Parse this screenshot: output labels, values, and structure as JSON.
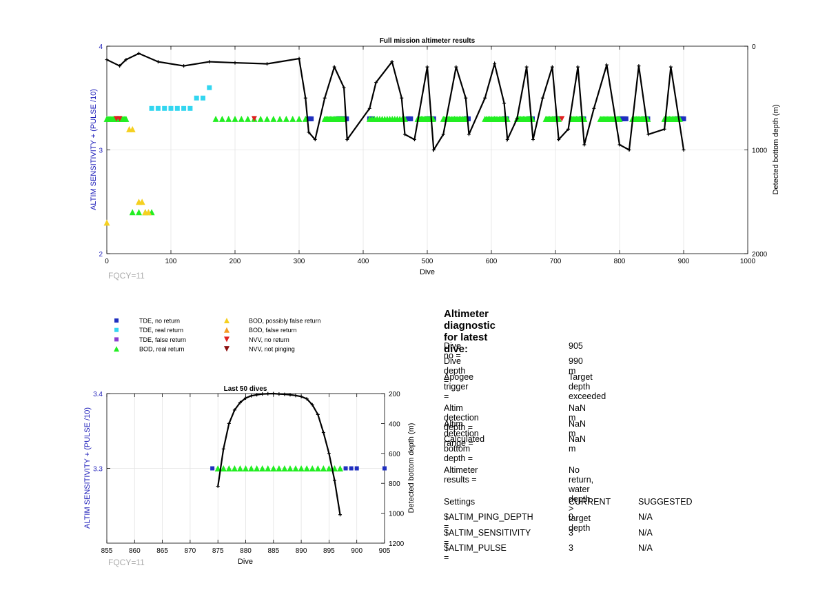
{
  "top_chart": {
    "title": "Full mission altimeter results",
    "xlabel": "Dive",
    "ylabel_left": "ALTIM SENSITIVITY + (PULSE /10)",
    "ylabel_right": "Detected bottom depth (m)",
    "footnote": "FQCY=11",
    "xlim": [
      0,
      1000
    ],
    "ylim_left": [
      2,
      4
    ],
    "ylim_right": [
      0,
      2000
    ],
    "x_ticks": [
      "0",
      "100",
      "200",
      "300",
      "400",
      "500",
      "600",
      "700",
      "800",
      "900",
      "1000"
    ],
    "y_ticks_left": [
      "2",
      "3",
      "4"
    ],
    "y_ticks_right": [
      "0",
      "1000",
      "2000"
    ]
  },
  "bottom_chart": {
    "title": "Last 50 dives",
    "xlabel": "Dive",
    "ylabel_left": "ALTIM SENSITIVITY + (PULSE /10)",
    "ylabel_right": "Detected bottom depth (m)",
    "footnote": "FQCY=11",
    "xlim": [
      855,
      905
    ],
    "ylim_left": [
      3.2,
      3.4
    ],
    "ylim_right": [
      200,
      1200
    ],
    "x_ticks": [
      "855",
      "860",
      "865",
      "870",
      "875",
      "880",
      "885",
      "890",
      "895",
      "900",
      "905"
    ],
    "y_ticks_left": [
      "3.3",
      "3.4"
    ],
    "y_ticks_right": [
      "200",
      "400",
      "600",
      "800",
      "1000",
      "1200"
    ]
  },
  "legend": [
    {
      "label": "TDE, no return",
      "color": "#1f2fbf",
      "shape": "square"
    },
    {
      "label": "TDE, real return",
      "color": "#33d6f0",
      "shape": "square"
    },
    {
      "label": "TDE, false return",
      "color": "#8a3fd0",
      "shape": "square"
    },
    {
      "label": "BOD, real return",
      "color": "#22ee22",
      "shape": "triangle-up"
    },
    {
      "label": "BOD, possibly false return",
      "color": "#f5d020",
      "shape": "triangle-up"
    },
    {
      "label": "BOD, false return",
      "color": "#f59a20",
      "shape": "triangle-up"
    },
    {
      "label": "NVV, no return",
      "color": "#e02020",
      "shape": "triangle-down"
    },
    {
      "label": "NVV, not pinging",
      "color": "#8b1010",
      "shape": "triangle-down"
    }
  ],
  "diagnostic": {
    "title": "Altimeter diagnostic for latest dive:",
    "dive_no_label": "Dive no =",
    "dive_no": "905",
    "dive_depth_label": "Dive depth =",
    "dive_depth": "990 m",
    "apogee_label": "Apogee trigger =",
    "apogee": "Target depth exceeded",
    "det_depth_label": "Altim detection depth =",
    "det_depth": "NaN m",
    "det_range_label": "Altim detection range =",
    "det_range": "NaN m",
    "calc_depth_label": "Calculated bottom depth =",
    "calc_depth": "NaN m",
    "results_label": "Altimeter results =",
    "results": "No return, water depth > target depth",
    "settings_label": "Settings",
    "current_label": "CURRENT",
    "suggested_label": "SUGGESTED",
    "ping_label": "$ALTIM_PING_DEPTH =",
    "ping_current": "0",
    "ping_suggested": "N/A",
    "sens_label": "$ALTIM_SENSITIVITY =",
    "sens_current": "3",
    "sens_suggested": "N/A",
    "pulse_label": "$ALTIM_PULSE =",
    "pulse_current": "3",
    "pulse_suggested": "N/A"
  },
  "chart_data": [
    {
      "type": "scatter",
      "title": "Full mission altimeter results",
      "xlabel": "Dive",
      "ylabel": "ALTIM SENSITIVITY + (PULSE /10)",
      "y2label": "Detected bottom depth (m)",
      "xlim": [
        0,
        1000
      ],
      "ylim": [
        2,
        4
      ],
      "y2lim": [
        0,
        2000
      ],
      "grid": true,
      "series": [
        {
          "name": "TDE, no return",
          "segments": [
            [
              315,
              320
            ],
            [
              360,
              375
            ],
            [
              410,
              415
            ],
            [
              470,
              475
            ],
            [
              500,
              510
            ],
            [
              560,
              565
            ],
            [
              620,
              625
            ],
            [
              660,
              665
            ],
            [
              700,
              705
            ],
            [
              740,
              745
            ],
            [
              800,
              810
            ],
            [
              840,
              845
            ],
            [
              890,
              900
            ]
          ],
          "y": 3.3
        },
        {
          "name": "TDE, real return",
          "points": [
            [
              70,
              3.4
            ],
            [
              80,
              3.4
            ],
            [
              90,
              3.4
            ],
            [
              100,
              3.4
            ],
            [
              110,
              3.4
            ],
            [
              120,
              3.4
            ],
            [
              130,
              3.4
            ],
            [
              140,
              3.5
            ],
            [
              150,
              3.5
            ],
            [
              160,
              3.6
            ]
          ]
        },
        {
          "name": "BOD, real return",
          "segments": [
            [
              0,
              30
            ],
            [
              170,
              310
            ],
            [
              340,
              370
            ],
            [
              410,
              465
            ],
            [
              485,
              510
            ],
            [
              525,
              560
            ],
            [
              590,
              625
            ],
            [
              640,
              665
            ],
            [
              685,
              705
            ],
            [
              725,
              745
            ],
            [
              770,
              800
            ],
            [
              820,
              845
            ],
            [
              870,
              895
            ]
          ],
          "y": 3.3
        },
        {
          "name": "BOD, real return (low)",
          "points": [
            [
              40,
              2.4
            ],
            [
              50,
              2.4
            ],
            [
              60,
              2.4
            ],
            [
              70,
              2.4
            ]
          ]
        },
        {
          "name": "BOD, possibly false return",
          "points": [
            [
              0,
              2.3
            ],
            [
              35,
              3.2
            ],
            [
              40,
              3.2
            ],
            [
              50,
              2.5
            ],
            [
              55,
              2.5
            ],
            [
              60,
              2.4
            ],
            [
              65,
              2.4
            ]
          ]
        },
        {
          "name": "NVV, no return",
          "points": [
            [
              15,
              3.3
            ],
            [
              20,
              3.3
            ],
            [
              230,
              3.3
            ],
            [
              710,
              3.3
            ]
          ]
        },
        {
          "name": "Detected bottom depth (m)",
          "axis": "right",
          "points": [
            [
              0,
              130
            ],
            [
              20,
              190
            ],
            [
              30,
              130
            ],
            [
              50,
              70
            ],
            [
              80,
              150
            ],
            [
              120,
              190
            ],
            [
              160,
              150
            ],
            [
              200,
              160
            ],
            [
              250,
              170
            ],
            [
              300,
              120
            ],
            [
              310,
              500
            ],
            [
              315,
              830
            ],
            [
              325,
              900
            ],
            [
              340,
              500
            ],
            [
              355,
              200
            ],
            [
              370,
              400
            ],
            [
              375,
              900
            ],
            [
              410,
              600
            ],
            [
              420,
              350
            ],
            [
              445,
              150
            ],
            [
              460,
              500
            ],
            [
              465,
              850
            ],
            [
              480,
              900
            ],
            [
              500,
              200
            ],
            [
              510,
              1000
            ],
            [
              525,
              850
            ],
            [
              545,
              200
            ],
            [
              560,
              500
            ],
            [
              565,
              850
            ],
            [
              590,
              500
            ],
            [
              605,
              170
            ],
            [
              620,
              550
            ],
            [
              625,
              900
            ],
            [
              640,
              700
            ],
            [
              655,
              200
            ],
            [
              665,
              900
            ],
            [
              680,
              500
            ],
            [
              695,
              200
            ],
            [
              705,
              900
            ],
            [
              720,
              800
            ],
            [
              735,
              200
            ],
            [
              745,
              950
            ],
            [
              760,
              600
            ],
            [
              780,
              180
            ],
            [
              800,
              950
            ],
            [
              815,
              1000
            ],
            [
              830,
              190
            ],
            [
              845,
              850
            ],
            [
              870,
              800
            ],
            [
              880,
              200
            ],
            [
              900,
              1000
            ]
          ]
        }
      ]
    },
    {
      "type": "scatter",
      "title": "Last 50 dives",
      "xlabel": "Dive",
      "ylabel": "ALTIM SENSITIVITY + (PULSE /10)",
      "y2label": "Detected bottom depth (m)",
      "xlim": [
        855,
        905
      ],
      "ylim": [
        3.2,
        3.4
      ],
      "y2lim": [
        200,
        1200
      ],
      "grid": true,
      "series": [
        {
          "name": "TDE, no return",
          "x": [
            874,
            898,
            899,
            900,
            905
          ],
          "y": [
            3.3,
            3.3,
            3.3,
            3.3,
            3.3
          ]
        },
        {
          "name": "BOD, real return",
          "x": [
            875,
            876,
            877,
            878,
            879,
            880,
            881,
            882,
            883,
            884,
            885,
            886,
            887,
            888,
            889,
            890,
            891,
            892,
            893,
            894,
            895,
            896,
            897
          ],
          "y": [
            3.3,
            3.3,
            3.3,
            3.3,
            3.3,
            3.3,
            3.3,
            3.3,
            3.3,
            3.3,
            3.3,
            3.3,
            3.3,
            3.3,
            3.3,
            3.3,
            3.3,
            3.3,
            3.3,
            3.3,
            3.3,
            3.3,
            3.3
          ]
        },
        {
          "name": "Detected bottom depth (m)",
          "axis": "right",
          "x": [
            875,
            876,
            877,
            878,
            879,
            880,
            881,
            882,
            883,
            884,
            885,
            886,
            887,
            888,
            889,
            890,
            891,
            892,
            893,
            894,
            895,
            896,
            897
          ],
          "y": [
            820,
            570,
            400,
            310,
            260,
            230,
            215,
            208,
            203,
            201,
            200,
            203,
            205,
            208,
            213,
            220,
            235,
            275,
            340,
            460,
            600,
            780,
            1010
          ]
        }
      ]
    }
  ]
}
